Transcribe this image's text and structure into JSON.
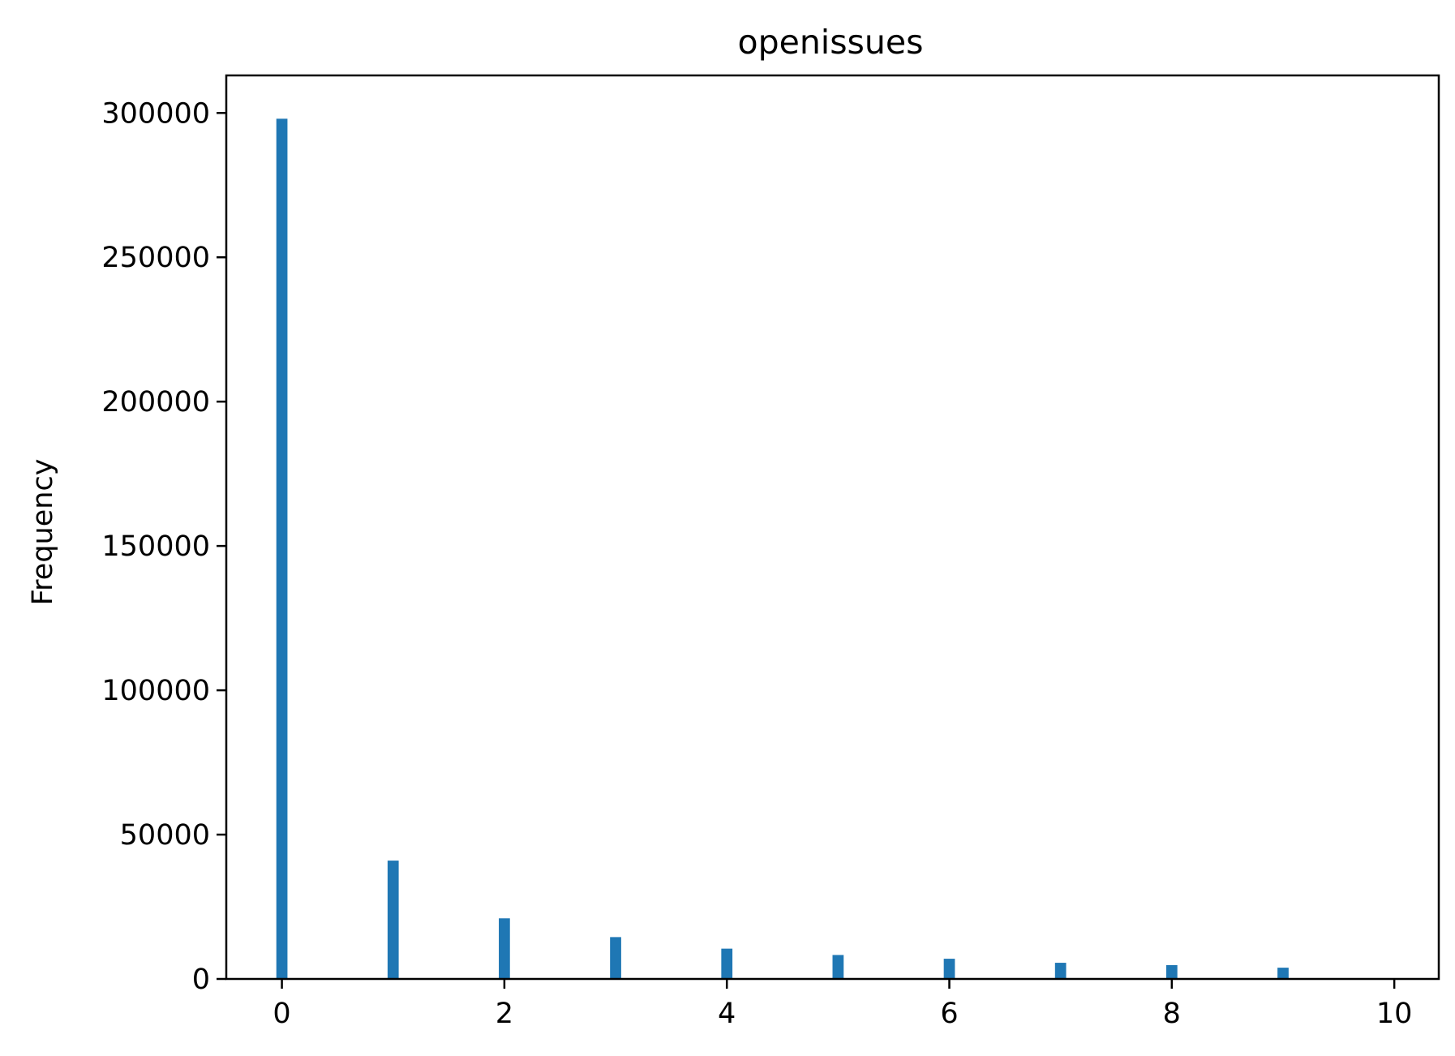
{
  "chart_data": {
    "type": "bar",
    "title": "openissues",
    "xlabel": "",
    "ylabel": "Frequency",
    "x": [
      0,
      1,
      2,
      3,
      4,
      5,
      6,
      7,
      8,
      9
    ],
    "values": [
      298000,
      41000,
      21000,
      14500,
      10500,
      8300,
      7000,
      5600,
      4800,
      3900
    ],
    "bar_width": 0.1,
    "xlim": [
      -0.5,
      10.4
    ],
    "ylim": [
      0,
      313000
    ],
    "xticks": [
      0,
      2,
      4,
      6,
      8,
      10
    ],
    "xtick_labels": [
      "0",
      "2",
      "4",
      "6",
      "8",
      "10"
    ],
    "yticks": [
      0,
      50000,
      100000,
      150000,
      200000,
      250000,
      300000
    ],
    "ytick_labels": [
      "0",
      "50000",
      "100000",
      "150000",
      "200000",
      "250000",
      "300000"
    ],
    "grid": false,
    "legend": "none",
    "bar_color": "#1f77b4"
  }
}
